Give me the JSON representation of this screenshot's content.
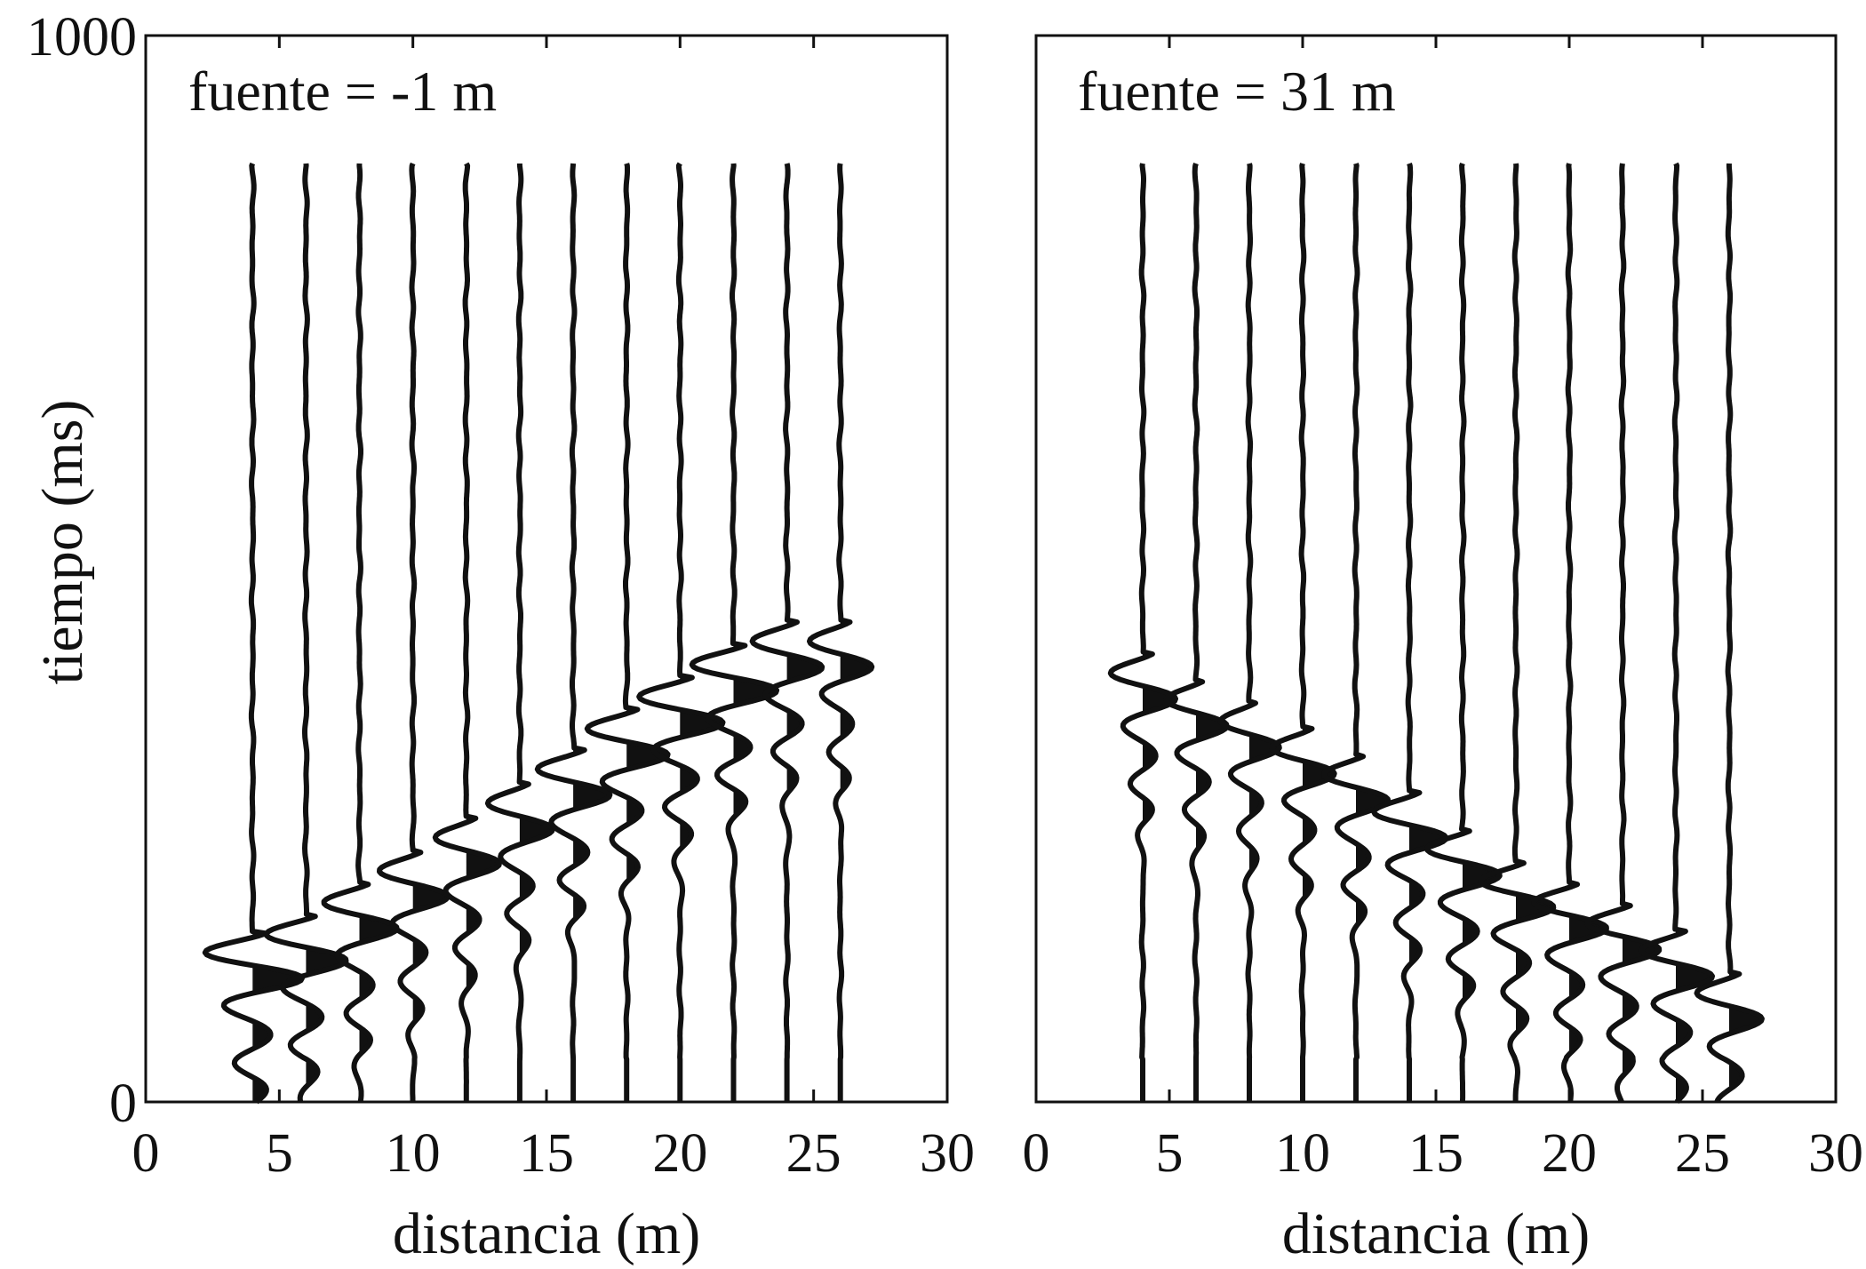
{
  "chart_data": [
    {
      "type": "seismogram",
      "annotation": "fuente = -1 m",
      "xlabel": "distancia (m)",
      "ylabel": "tiempo (ms)",
      "xlim": [
        0,
        30
      ],
      "ylim": [
        0,
        1000
      ],
      "x_ticks": [
        0,
        5,
        10,
        15,
        20,
        25,
        30
      ],
      "y_ticks": [
        0,
        1000
      ],
      "grid": false,
      "traces_x": [
        4,
        6,
        8,
        10,
        12,
        14,
        16,
        18,
        20,
        22,
        24,
        26
      ],
      "source_x": -1,
      "first_arrival_ms": [
        128,
        145,
        175,
        205,
        236,
        268,
        300,
        338,
        368,
        398,
        420,
        420
      ],
      "trace_amplitude": [
        1.9,
        1.6,
        1.45,
        1.35,
        1.3,
        1.3,
        1.45,
        1.6,
        1.7,
        1.7,
        1.4,
        1.25
      ]
    },
    {
      "type": "seismogram",
      "annotation": "fuente = 31 m",
      "xlabel": "distancia (m)",
      "ylabel": "",
      "xlim": [
        0,
        30
      ],
      "ylim": [
        0,
        1000
      ],
      "x_ticks": [
        0,
        5,
        10,
        15,
        20,
        25,
        30
      ],
      "y_ticks": [],
      "grid": false,
      "traces_x": [
        4,
        6,
        8,
        10,
        12,
        14,
        16,
        18,
        20,
        22,
        24,
        26
      ],
      "source_x": 31,
      "first_arrival_ms": [
        390,
        365,
        345,
        320,
        295,
        260,
        225,
        195,
        175,
        155,
        130,
        90
      ],
      "trace_amplitude": [
        1.3,
        1.25,
        1.2,
        1.25,
        1.3,
        1.4,
        1.45,
        1.45,
        1.45,
        1.45,
        1.45,
        1.3
      ]
    }
  ]
}
